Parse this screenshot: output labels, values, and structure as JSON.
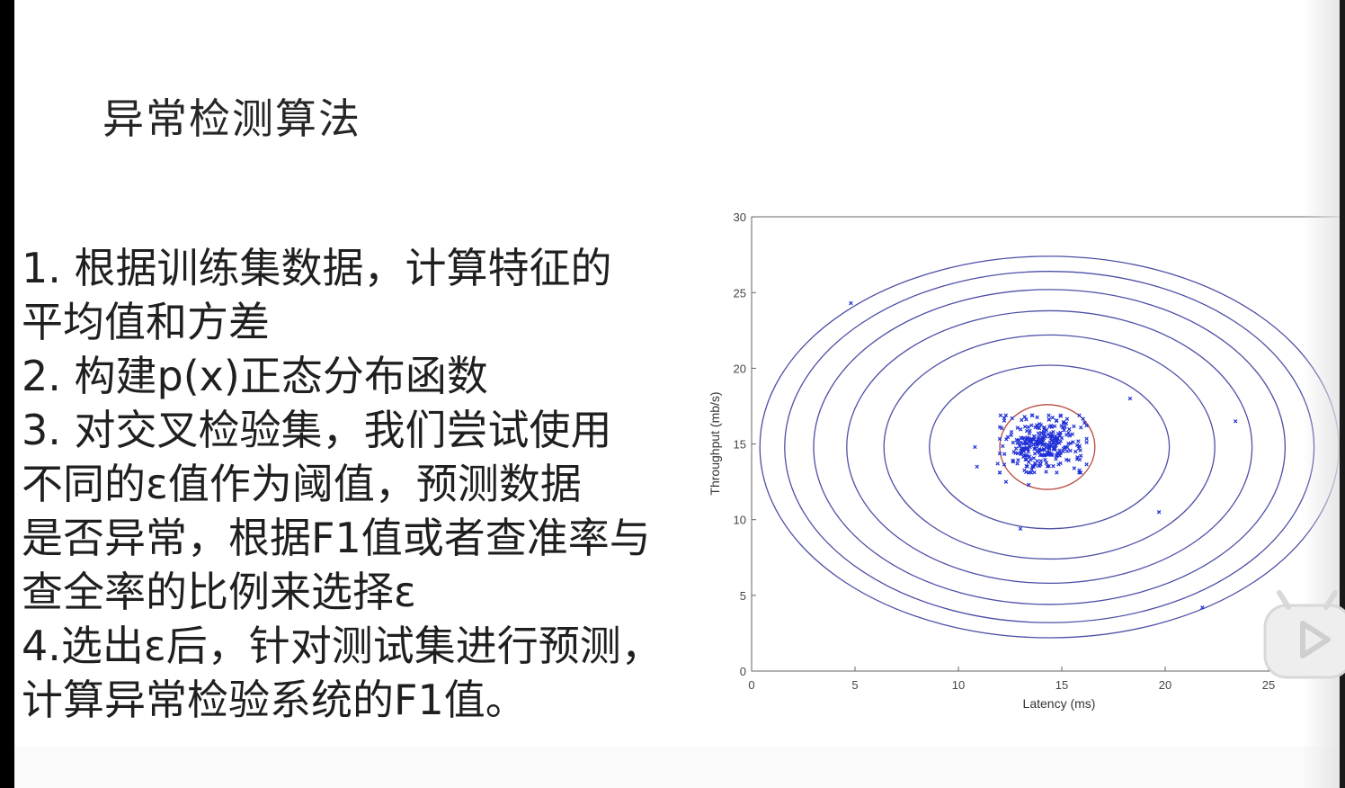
{
  "slide": {
    "title": "异常检测算法",
    "steps": [
      "1.  根据训练集数据，计算特征的",
      "平均值和方差",
      "2.  构建p(x)正态分布函数",
      "3.  对交叉检验集，我们尝试使用",
      "不同的ε值作为阈值，预测数据",
      "是否异常，根据F1值或者查准率与",
      "查全率的比例来选择ε",
      "4.选出ε后，针对测试集进行预测，",
      "计算异常检验系统的F1值。"
    ]
  },
  "colors": {
    "points": "#1f2fd6",
    "contours": "#4d4fa6",
    "inner_contour": "#b84a44"
  },
  "icons": {
    "player": "tv-play-icon"
  },
  "chart_data": {
    "type": "scatter",
    "xlabel": "Latency (ms)",
    "ylabel": "Throughput (mb/s)",
    "xlim": [
      0,
      30
    ],
    "ylim": [
      0,
      30
    ],
    "xticks": [
      0,
      5,
      10,
      15,
      20,
      25
    ],
    "yticks": [
      0,
      5,
      10,
      15,
      20,
      25,
      30
    ],
    "grid": false,
    "legend": "none",
    "cluster": {
      "center": [
        14.1,
        15.0
      ],
      "spread": [
        1.0,
        0.9
      ],
      "count": 307
    },
    "outliers": [
      [
        4.8,
        24.3
      ],
      [
        18.3,
        18.0
      ],
      [
        19.7,
        10.5
      ],
      [
        21.8,
        4.2
      ],
      [
        13.0,
        9.4
      ],
      [
        23.4,
        16.5
      ],
      [
        10.9,
        13.5
      ],
      [
        10.8,
        14.8
      ],
      [
        12.3,
        12.5
      ],
      [
        13.4,
        12.3
      ],
      [
        11.9,
        13.7
      ],
      [
        16.1,
        16.4
      ],
      [
        15.6,
        13.4
      ],
      [
        12.6,
        16.7
      ]
    ],
    "contours": [
      {
        "center": [
          14.3,
          14.8
        ],
        "radii": [
          2.3,
          2.8
        ],
        "color": "inner"
      },
      {
        "center": [
          14.4,
          14.8
        ],
        "radii": [
          5.8,
          5.4
        ]
      },
      {
        "center": [
          14.4,
          14.8
        ],
        "radii": [
          8.0,
          7.4
        ]
      },
      {
        "center": [
          14.4,
          14.8
        ],
        "radii": [
          9.8,
          9.0
        ]
      },
      {
        "center": [
          14.4,
          14.8
        ],
        "radii": [
          11.4,
          10.4
        ]
      },
      {
        "center": [
          14.4,
          14.8
        ],
        "radii": [
          12.8,
          11.6
        ]
      },
      {
        "center": [
          14.4,
          14.8
        ],
        "radii": [
          14.0,
          12.6
        ]
      }
    ]
  }
}
